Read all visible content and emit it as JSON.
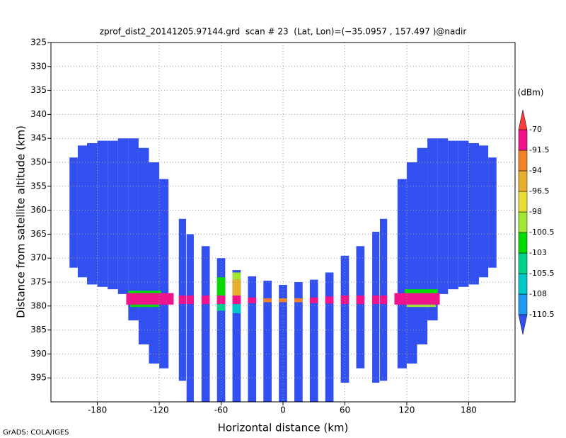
{
  "chart_data": {
    "type": "heatmap",
    "title": "zprof_dist2_20141205.97144.grd  scan # 23  (Lat, Lon)=(−35.0957 , 157.497 )@nadir",
    "x_label": "Horizontal distance (km)",
    "y_label": "Distance from satellite altitude (km)",
    "colorbar_label": "(dBm)",
    "footer": "GrADS: COLA/IGES",
    "xlim": [
      -225,
      225
    ],
    "xticks": [
      -180,
      -120,
      -60,
      0,
      60,
      120,
      180
    ],
    "ylim": [
      400,
      325
    ],
    "yticks": [
      325,
      330,
      335,
      340,
      345,
      350,
      355,
      360,
      365,
      370,
      375,
      380,
      385,
      390,
      395
    ],
    "grid": true,
    "levels": [
      -110.5,
      -108,
      -105.5,
      -103,
      -100.5,
      -98,
      -96.5,
      -94,
      -91.5,
      -70
    ],
    "colors": [
      "#3250f0",
      "#1e9bf0",
      "#00c8c8",
      "#00d28c",
      "#00dc00",
      "#a0e632",
      "#e6dc32",
      "#e6af2d",
      "#f08228",
      "#f0148c",
      "#fa3c3c"
    ],
    "cells": [
      {
        "x": [
          -207,
          -199
        ],
        "y": [
          349,
          372
        ],
        "v": -115
      },
      {
        "x": [
          -199,
          -190
        ],
        "y": [
          346.5,
          374
        ],
        "v": -115
      },
      {
        "x": [
          -190,
          -180
        ],
        "y": [
          346,
          375.5
        ],
        "v": -115
      },
      {
        "x": [
          -180,
          -170
        ],
        "y": [
          345.5,
          376
        ],
        "v": -115
      },
      {
        "x": [
          -170,
          -160
        ],
        "y": [
          345.5,
          376.5
        ],
        "v": -115
      },
      {
        "x": [
          -160,
          -150
        ],
        "y": [
          345,
          377.5
        ],
        "v": -115
      },
      {
        "x": [
          -150,
          -140
        ],
        "y": [
          345,
          383
        ],
        "v": -115
      },
      {
        "x": [
          -140,
          -130
        ],
        "y": [
          347,
          388
        ],
        "v": -115
      },
      {
        "x": [
          -130,
          -120
        ],
        "y": [
          350,
          392
        ],
        "v": -115
      },
      {
        "x": [
          -120,
          -111
        ],
        "y": [
          353.5,
          393
        ],
        "v": -115
      },
      {
        "x": [
          199,
          207
        ],
        "y": [
          349,
          372
        ],
        "v": -115
      },
      {
        "x": [
          190,
          199
        ],
        "y": [
          346.5,
          374
        ],
        "v": -115
      },
      {
        "x": [
          180,
          190
        ],
        "y": [
          346,
          375.5
        ],
        "v": -115
      },
      {
        "x": [
          170,
          180
        ],
        "y": [
          345.5,
          376
        ],
        "v": -115
      },
      {
        "x": [
          160,
          170
        ],
        "y": [
          345.5,
          376.5
        ],
        "v": -115
      },
      {
        "x": [
          150,
          160
        ],
        "y": [
          345,
          377.5
        ],
        "v": -115
      },
      {
        "x": [
          140,
          150
        ],
        "y": [
          345,
          383
        ],
        "v": -115
      },
      {
        "x": [
          130,
          140
        ],
        "y": [
          347,
          388
        ],
        "v": -115
      },
      {
        "x": [
          120,
          130
        ],
        "y": [
          350,
          392
        ],
        "v": -115
      },
      {
        "x": [
          111,
          120
        ],
        "y": [
          353.5,
          393
        ],
        "v": -115
      },
      {
        "x": [
          -101,
          -94
        ],
        "y": [
          361.8,
          395.6
        ],
        "v": -115
      },
      {
        "x": [
          -93.5,
          -86.5
        ],
        "y": [
          365,
          400
        ],
        "v": -115
      },
      {
        "x": [
          -79,
          -71
        ],
        "y": [
          367.5,
          400
        ],
        "v": -115
      },
      {
        "x": [
          -64,
          -56
        ],
        "y": [
          370,
          400
        ],
        "v": -115
      },
      {
        "x": [
          -49,
          -41
        ],
        "y": [
          372.5,
          400
        ],
        "v": -115
      },
      {
        "x": [
          -34,
          -26
        ],
        "y": [
          373.8,
          400
        ],
        "v": -115
      },
      {
        "x": [
          -19,
          -11
        ],
        "y": [
          374.7,
          400
        ],
        "v": -115
      },
      {
        "x": [
          -4,
          4
        ],
        "y": [
          375.6,
          400
        ],
        "v": -115
      },
      {
        "x": [
          11,
          19
        ],
        "y": [
          375,
          400
        ],
        "v": -115
      },
      {
        "x": [
          26,
          34
        ],
        "y": [
          374.5,
          400
        ],
        "v": -115
      },
      {
        "x": [
          41,
          49
        ],
        "y": [
          373,
          400
        ],
        "v": -115
      },
      {
        "x": [
          56,
          64
        ],
        "y": [
          369.5,
          396
        ],
        "v": -115
      },
      {
        "x": [
          71,
          79
        ],
        "y": [
          367.5,
          393
        ],
        "v": -115
      },
      {
        "x": [
          86.5,
          93.5
        ],
        "y": [
          364.5,
          396
        ],
        "v": -115
      },
      {
        "x": [
          94,
          101
        ],
        "y": [
          361.8,
          395.6
        ],
        "v": -115
      },
      {
        "x": [
          -152,
          -106
        ],
        "y": [
          377.3,
          379.7
        ],
        "v": -85
      },
      {
        "x": [
          -150,
          -118
        ],
        "y": [
          376.8,
          377.3
        ],
        "v": -101
      },
      {
        "x": [
          -148,
          -120
        ],
        "y": [
          379.7,
          380.2
        ],
        "v": -101
      },
      {
        "x": [
          108,
          152
        ],
        "y": [
          377.3,
          379.7
        ],
        "v": -85
      },
      {
        "x": [
          118,
          150
        ],
        "y": [
          376.5,
          377.3
        ],
        "v": -101
      },
      {
        "x": [
          120,
          148
        ],
        "y": [
          379.7,
          380.2
        ],
        "v": -99
      },
      {
        "x": [
          -101,
          -94
        ],
        "y": [
          377.8,
          379.6
        ],
        "v": -85
      },
      {
        "x": [
          -93.5,
          -86.5
        ],
        "y": [
          377.8,
          379.6
        ],
        "v": -85
      },
      {
        "x": [
          -79,
          -71
        ],
        "y": [
          377.8,
          379.6
        ],
        "v": -88
      },
      {
        "x": [
          -64,
          -56
        ],
        "y": [
          377.8,
          379.6
        ],
        "v": -90
      },
      {
        "x": [
          -49,
          -41
        ],
        "y": [
          377.8,
          379.6
        ],
        "v": -88
      },
      {
        "x": [
          -34,
          -26
        ],
        "y": [
          378.2,
          379.4
        ],
        "v": -88
      },
      {
        "x": [
          -19,
          -11
        ],
        "y": [
          378.4,
          379.2
        ],
        "v": -92
      },
      {
        "x": [
          -4,
          4
        ],
        "y": [
          378.4,
          379.2
        ],
        "v": -93
      },
      {
        "x": [
          11,
          19
        ],
        "y": [
          378.4,
          379.2
        ],
        "v": -92
      },
      {
        "x": [
          26,
          34
        ],
        "y": [
          378.2,
          379.4
        ],
        "v": -90
      },
      {
        "x": [
          41,
          49
        ],
        "y": [
          378,
          379.5
        ],
        "v": -88
      },
      {
        "x": [
          56,
          64
        ],
        "y": [
          377.8,
          379.6
        ],
        "v": -88
      },
      {
        "x": [
          71,
          79
        ],
        "y": [
          377.8,
          379.6
        ],
        "v": -88
      },
      {
        "x": [
          86.5,
          93.5
        ],
        "y": [
          377.8,
          379.6
        ],
        "v": -85
      },
      {
        "x": [
          94,
          101
        ],
        "y": [
          377.8,
          379.6
        ],
        "v": -85
      },
      {
        "x": [
          -49,
          -41
        ],
        "y": [
          373,
          374.5
        ],
        "v": -99
      },
      {
        "x": [
          -49,
          -41
        ],
        "y": [
          374.5,
          377.8
        ],
        "v": -95
      },
      {
        "x": [
          -49,
          -41
        ],
        "y": [
          379.6,
          381.5
        ],
        "v": -106
      },
      {
        "x": [
          -64,
          -56
        ],
        "y": [
          374,
          377.8
        ],
        "v": -102
      },
      {
        "x": [
          -64,
          -56
        ],
        "y": [
          379.6,
          381
        ],
        "v": -104
      }
    ]
  }
}
